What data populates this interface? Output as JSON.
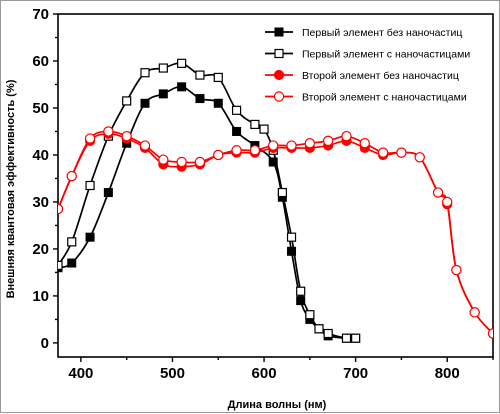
{
  "chart_data": {
    "type": "line",
    "xlabel": "Длина волны (нм)",
    "ylabel": "Внешняя квантовая эффективность (%)",
    "xlim": [
      375,
      850
    ],
    "ylim": [
      -3,
      70
    ],
    "xticks": [
      400,
      500,
      600,
      700,
      800
    ],
    "yticks": [
      0,
      10,
      20,
      30,
      40,
      50,
      60,
      70
    ],
    "grid": false,
    "legend_position": "top-right",
    "series": [
      {
        "name": "Первый элемент без наночастиц",
        "color": "#000000",
        "marker": "filled-square",
        "x": [
          375,
          390,
          410,
          430,
          450,
          470,
          490,
          510,
          530,
          550,
          570,
          590,
          610,
          620,
          630,
          640,
          650,
          660,
          670,
          690,
          700
        ],
        "y": [
          16,
          17,
          22.5,
          32,
          42.5,
          51,
          53,
          54.5,
          52,
          51,
          45,
          42,
          38.5,
          31,
          19.5,
          9,
          5,
          3,
          1.5,
          1,
          1
        ]
      },
      {
        "name": "Первый элемент с наночастицами",
        "color": "#000000",
        "marker": "open-square",
        "x": [
          375,
          390,
          410,
          430,
          450,
          470,
          490,
          510,
          530,
          550,
          570,
          590,
          600,
          610,
          620,
          630,
          640,
          650,
          660,
          670,
          690,
          700
        ],
        "y": [
          16.5,
          21.5,
          33.5,
          44,
          51.5,
          57.5,
          58.5,
          59.5,
          57,
          56.5,
          49.5,
          46.5,
          45.5,
          41,
          32,
          22.5,
          11,
          6,
          3,
          2,
          1,
          1
        ]
      },
      {
        "name": "Второй элемент без наночастиц",
        "color": "#ff0000",
        "marker": "filled-circle",
        "x": [
          375,
          390,
          410,
          430,
          450,
          470,
          490,
          510,
          530,
          550,
          570,
          590,
          610,
          630,
          650,
          670,
          690,
          710,
          730,
          750,
          770,
          790,
          800,
          810,
          830,
          850
        ],
        "y": [
          28.5,
          35.5,
          43,
          44.5,
          43.5,
          41.5,
          38,
          37.5,
          38,
          40,
          40.5,
          40.5,
          41.5,
          41.5,
          41.5,
          42,
          43,
          41.5,
          40,
          40.5,
          39.5,
          32,
          29.5,
          15.5,
          6.5,
          2
        ]
      },
      {
        "name": "Второй элемент с наночастицами",
        "color": "#ff0000",
        "marker": "open-circle",
        "x": [
          375,
          390,
          410,
          430,
          450,
          470,
          490,
          510,
          530,
          550,
          570,
          590,
          610,
          630,
          650,
          670,
          690,
          710,
          730,
          750,
          770,
          790,
          800,
          810,
          830,
          850
        ],
        "y": [
          28.5,
          35.5,
          43.5,
          45,
          44,
          42,
          39,
          38.5,
          38.5,
          40,
          41,
          41,
          42,
          42,
          42.5,
          43,
          44,
          42.5,
          40.5,
          40.5,
          39.5,
          32,
          30,
          15.5,
          6.5,
          2
        ]
      }
    ]
  }
}
